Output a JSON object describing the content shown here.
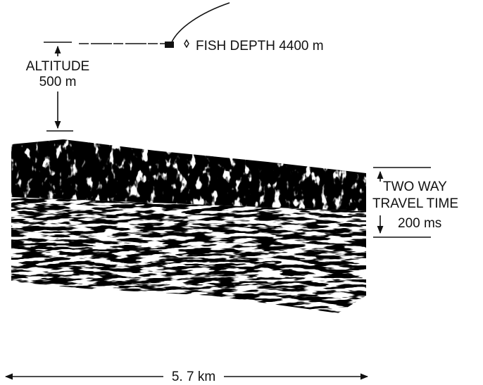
{
  "fish_label": "FISH DEPTH 4400 m",
  "altitude": {
    "label": "ALTITUDE",
    "value": "500 m"
  },
  "travel_time": {
    "line1": "TWO WAY",
    "line2": "TRAVEL TIME",
    "value": "200 ms"
  },
  "distance": "5. 7 km"
}
